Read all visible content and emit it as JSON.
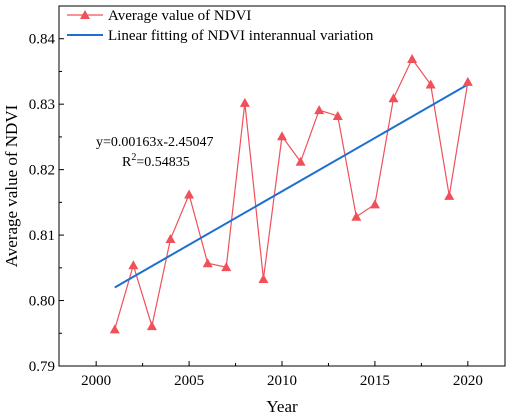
{
  "chart_data": {
    "type": "line",
    "xlabel": "Year",
    "ylabel": "Average value of NDVI",
    "xlim": [
      1998,
      2022
    ],
    "ylim": [
      0.79,
      0.845
    ],
    "xticks": [
      "2000",
      "2005",
      "2010",
      "2015",
      "2020"
    ],
    "yticks": [
      "0.79",
      "0.80",
      "0.81",
      "0.82",
      "0.83",
      "0.84"
    ],
    "x": [
      2001,
      2002,
      2003,
      2004,
      2005,
      2006,
      2007,
      2008,
      2009,
      2010,
      2011,
      2012,
      2013,
      2014,
      2015,
      2016,
      2017,
      2018,
      2019,
      2020
    ],
    "series": [
      {
        "name": "Average value of NDVI",
        "color": "#f0505a",
        "marker": "triangle",
        "values": [
          0.7956,
          0.8054,
          0.7961,
          0.8094,
          0.8162,
          0.8057,
          0.8051,
          0.8302,
          0.8033,
          0.8251,
          0.8212,
          0.8291,
          0.8282,
          0.8128,
          0.8147,
          0.8309,
          0.8369,
          0.833,
          0.816,
          0.8334
        ]
      },
      {
        "name": "Linear fitting of NDVI interannual variation",
        "color": "#1f6fd1",
        "type": "line",
        "x": [
          2001,
          2020
        ],
        "values": [
          0.802,
          0.833
        ]
      }
    ],
    "annotation": {
      "equation": "y=0.00163x-2.45047",
      "r2_prefix": "R",
      "r2_sup": "2",
      "r2_value": "=0.54835"
    },
    "legend_placement": "top-left",
    "grid": false
  }
}
